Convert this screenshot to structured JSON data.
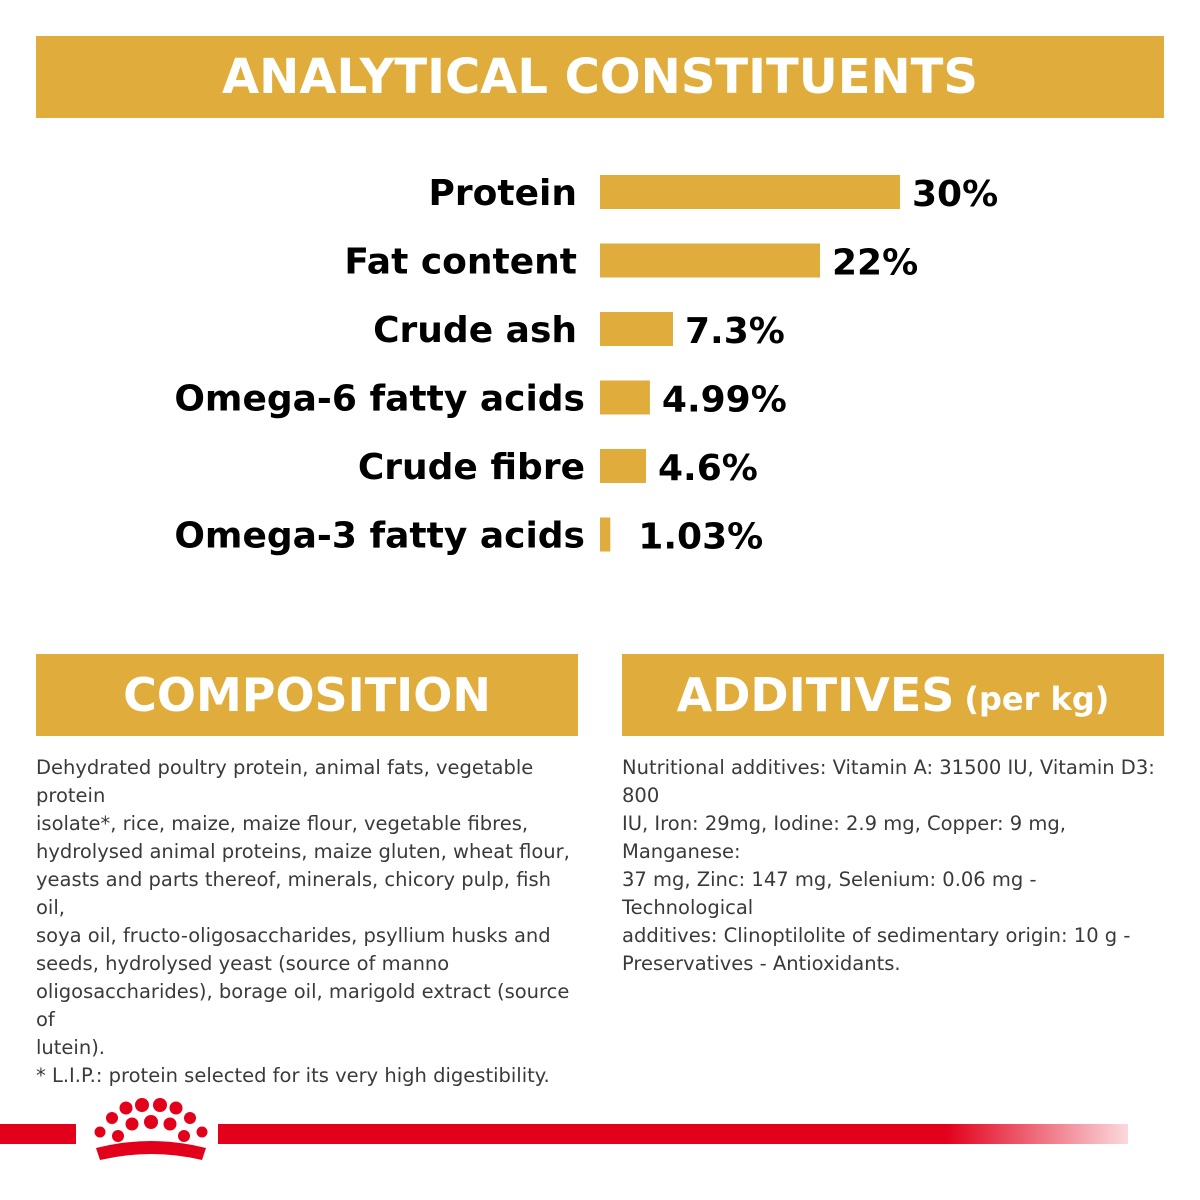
{
  "header": {
    "title": "ANALYTICAL CONSTITUENTS"
  },
  "chart_data": {
    "type": "bar",
    "orientation": "horizontal",
    "title": "ANALYTICAL CONSTITUENTS",
    "categories": [
      "Protein",
      "Fat content",
      "Crude ash",
      "Omega-6 fatty acids",
      "Crude fibre",
      "Omega-3 fatty acids"
    ],
    "values": [
      30,
      22,
      7.3,
      4.99,
      4.6,
      1.03
    ],
    "value_labels": [
      "30%",
      "22%",
      "7.3%",
      "4.99%",
      "4.6%",
      "1.03%"
    ],
    "unit": "%",
    "bar_color": "#e0ad3c",
    "grid": false,
    "legend": false
  },
  "composition": {
    "title": "COMPOSITION",
    "lines": [
      "Dehydrated poultry protein, animal fats, vegetable protein",
      "isolate*, rice, maize, maize flour, vegetable fibres,",
      "hydrolysed animal proteins, maize gluten, wheat flour,",
      "yeasts and parts thereof, minerals, chicory pulp, fish oil,",
      "soya oil, fructo-oligosaccharides, psyllium husks and",
      "seeds, hydrolysed yeast (source of manno",
      "oligosaccharides), borage oil, marigold extract (source of",
      "lutein).",
      "* L.I.P.: protein selected for its very high digestibility."
    ]
  },
  "additives": {
    "title": "ADDITIVES",
    "subtitle": "(per kg)",
    "lines": [
      "Nutritional additives: Vitamin A: 31500 IU, Vitamin D3: 800",
      "IU, Iron: 29mg, Iodine: 2.9 mg, Copper: 9 mg, Manganese:",
      "37 mg, Zinc: 147 mg, Selenium: 0.06 mg - Technological",
      "additives: Clinoptilolite of sedimentary origin: 10 g -",
      "Preservatives - Antioxidants."
    ]
  },
  "colors": {
    "accent_gold": "#e0ad3c",
    "brand_red": "#e3001b",
    "body_text": "#3a3a3a"
  },
  "footer": {
    "logo_icon": "crown-logo-icon"
  }
}
